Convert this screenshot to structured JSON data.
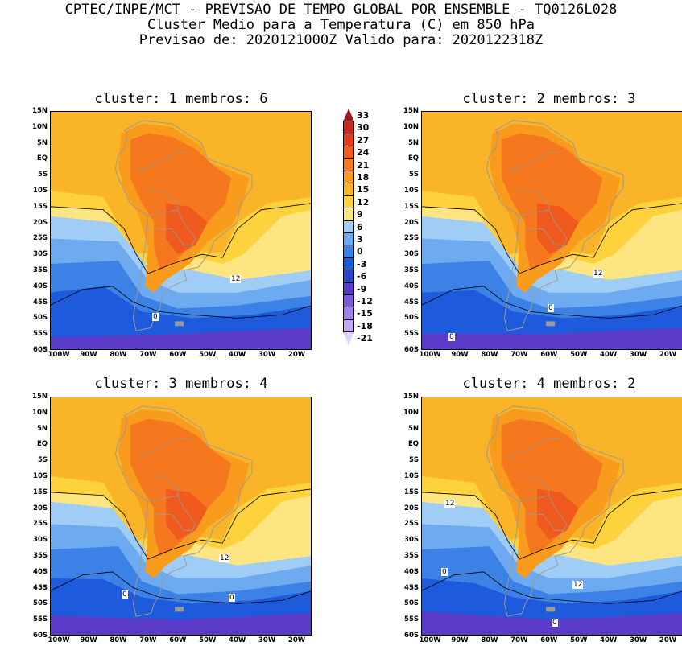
{
  "header": {
    "line1": "CPTEC/INPE/MCT - PREVISAO DE TEMPO GLOBAL POR ENSEMBLE - TQ0126L028",
    "line2": "Cluster Medio para a Temperatura (C) em 850 hPa",
    "line3": "Previsao de: 2020121000Z   Valido para: 2020122318Z"
  },
  "axes": {
    "lat_labels": [
      "15N",
      "10N",
      "5N",
      "EQ",
      "5S",
      "10S",
      "15S",
      "20S",
      "25S",
      "30S",
      "35S",
      "40S",
      "45S",
      "50S",
      "55S",
      "60S"
    ],
    "lon_labels": [
      "100W",
      "90W",
      "80W",
      "70W",
      "60W",
      "50W",
      "40W",
      "30W",
      "20W"
    ]
  },
  "panels": [
    {
      "title": "cluster: 1   membros: 6",
      "contour_labels": [
        "12",
        "0"
      ]
    },
    {
      "title": "cluster: 2   membros: 3",
      "contour_labels": [
        "12",
        "0",
        "0"
      ]
    },
    {
      "title": "cluster: 3   membros: 4",
      "contour_labels": [
        "12",
        "0",
        "0"
      ]
    },
    {
      "title": "cluster: 4   membros: 2",
      "contour_labels": [
        "12",
        "12",
        "0",
        "0"
      ]
    }
  ],
  "colorbar": {
    "labels": [
      "33",
      "30",
      "27",
      "24",
      "21",
      "18",
      "15",
      "12",
      "9",
      "6",
      "3",
      "0",
      "-3",
      "-6",
      "-9",
      "-12",
      "-15",
      "-18",
      "-21"
    ],
    "colors": {
      "c33": "#a51616",
      "c30": "#c8281e",
      "c27": "#e63c1e",
      "c24": "#f05a1e",
      "c21": "#f5781e",
      "c18": "#f99b1c",
      "c15": "#fab428",
      "c12": "#fdd23c",
      "c9": "#fde682",
      "c6": "#a0cdf5",
      "c3": "#6eaaf0",
      "c0": "#3c82e6",
      "cm3": "#1e5adc",
      "cm6": "#2846c8",
      "cm9": "#5a3cc8",
      "cm12": "#7d5ad7",
      "cm15": "#a082e6",
      "cm18": "#c3aaf0",
      "cm21": "#e1d2fa"
    }
  }
}
